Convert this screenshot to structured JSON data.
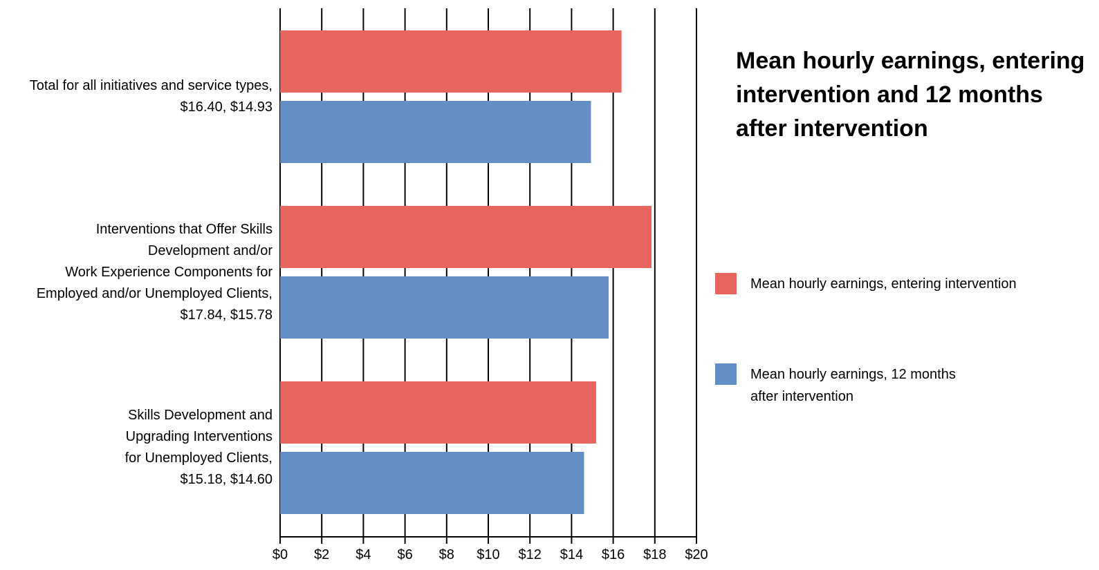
{
  "chart_data": {
    "type": "bar",
    "orientation": "horizontal",
    "title": "Mean hourly earnings, entering intervention and 12 months after intervention",
    "categories": [
      "Total for all initiatives and service types, $16.40, $14.93",
      "Interventions that Offer Skills Development and/or Work Experience Components for Employed and/or Unemployed Clients, $17.84, $15.78",
      "Skills Development and Upgrading Interventions for Unemployed Clients, $15.18, $14.60"
    ],
    "category_lines": [
      [
        "Total for all initiatives and service types,",
        "$16.40, $14.93"
      ],
      [
        "Interventions that Offer Skills",
        "Development and/or",
        "Work Experience Components for",
        "Employed and/or Unemployed Clients,",
        "$17.84, $15.78"
      ],
      [
        "Skills Development and",
        "Upgrading Interventions",
        "for Unemployed Clients,",
        "$15.18, $14.60"
      ]
    ],
    "series": [
      {
        "name": "Mean hourly earnings, entering intervention",
        "color": "#e8645f",
        "values": [
          16.4,
          17.84,
          15.18
        ]
      },
      {
        "name": "Mean hourly earnings, 12 months after intervention",
        "color": "#628dc5",
        "values": [
          14.93,
          15.78,
          14.6
        ]
      }
    ],
    "x_ticks": [
      "$0",
      "$2",
      "$4",
      "$6",
      "$8",
      "$10",
      "$12",
      "$14",
      "$16",
      "$18",
      "$20"
    ],
    "xlim": [
      0,
      20
    ],
    "xlabel": "",
    "ylabel": "",
    "grid": "vertical",
    "legend_placement": "right"
  },
  "legend": {
    "entering_lines": [
      "Mean hourly earnings, entering intervention"
    ],
    "after_lines": [
      "Mean hourly earnings, 12 months",
      "after intervention"
    ]
  }
}
